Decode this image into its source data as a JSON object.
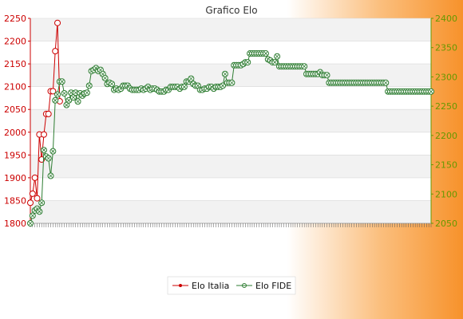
{
  "chart_data": {
    "type": "line",
    "title": "Grafico Elo",
    "xlabel": "",
    "ylabel": "",
    "left_axis": {
      "ylim": [
        1800,
        2250
      ],
      "ticks": [
        1800,
        1850,
        1900,
        1950,
        2000,
        2050,
        2100,
        2150,
        2200,
        2250
      ],
      "color": "#cc0000"
    },
    "right_axis": {
      "ylim": [
        2050,
        2400
      ],
      "ticks": [
        2050,
        2100,
        2150,
        2200,
        2250,
        2300,
        2350,
        2400
      ],
      "color": "#669900"
    },
    "grid": true,
    "legend": {
      "placement": "bottom-center",
      "entries": [
        "Elo Italia",
        "Elo FIDE"
      ]
    },
    "series": [
      {
        "name": "Elo Italia",
        "axis": "left",
        "color": "#cc0000",
        "values": [
          1845,
          1865,
          1900,
          1855,
          1995,
          1940,
          1995,
          2040,
          2040,
          2090,
          2090,
          2178,
          2240,
          2068
        ]
      },
      {
        "name": "Elo FIDE",
        "axis": "right",
        "color": "#2e7d32",
        "values": [
          2050,
          2063,
          2072,
          2075,
          2070,
          2085,
          2175,
          2164,
          2161,
          2131,
          2173,
          2260,
          2270,
          2292,
          2292,
          2272,
          2252,
          2260,
          2273,
          2265,
          2273,
          2258,
          2272,
          2268,
          2272,
          2273,
          2285,
          2310,
          2312,
          2315,
          2310,
          2312,
          2305,
          2298,
          2288,
          2290,
          2288,
          2278,
          2280,
          2278,
          2280,
          2285,
          2285,
          2285,
          2280,
          2278,
          2278,
          2278,
          2278,
          2280,
          2278,
          2280,
          2283,
          2278,
          2280,
          2280,
          2278,
          2275,
          2275,
          2275,
          2278,
          2278,
          2283,
          2283,
          2283,
          2283,
          2280,
          2283,
          2283,
          2292,
          2292,
          2297,
          2288,
          2285,
          2285,
          2278,
          2278,
          2280,
          2280,
          2283,
          2283,
          2280,
          2283,
          2283,
          2283,
          2285,
          2305,
          2290,
          2290,
          2290,
          2320,
          2320,
          2320,
          2320,
          2322,
          2325,
          2325,
          2340,
          2340,
          2340,
          2340,
          2340,
          2340,
          2340,
          2340,
          2330,
          2328,
          2325,
          2325,
          2335,
          2318,
          2318,
          2318,
          2318,
          2318,
          2318,
          2318,
          2318,
          2318,
          2318,
          2318,
          2318,
          2305,
          2305,
          2305,
          2305,
          2305,
          2305,
          2308,
          2303,
          2303,
          2303,
          2290,
          2290,
          2290,
          2290,
          2290,
          2290,
          2290,
          2290,
          2290,
          2290,
          2290,
          2290,
          2290,
          2290,
          2290,
          2290,
          2290,
          2290,
          2290,
          2290,
          2290,
          2290,
          2290,
          2290,
          2290,
          2290,
          2275,
          2275,
          2275,
          2275,
          2275,
          2275,
          2275,
          2275,
          2275,
          2275,
          2275,
          2275,
          2275,
          2275,
          2275,
          2275,
          2275,
          2275,
          2275,
          2275
        ]
      }
    ]
  }
}
